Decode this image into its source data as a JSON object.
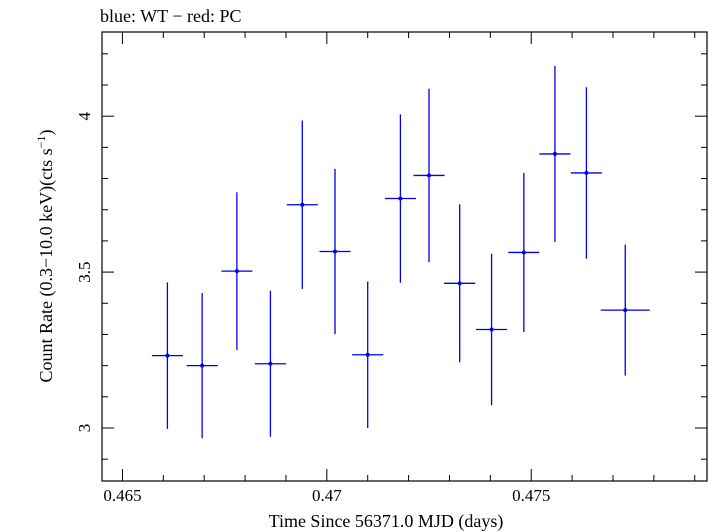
{
  "chart_data": {
    "type": "scatter",
    "title": "blue: WT − red: PC",
    "xlabel": "Time Since 56371.0 MJD (days)",
    "ylabel": "Count Rate (0.3−10.0 keV)(cts s",
    "ylabel_sup": "−1",
    "ylabel_end": ")",
    "xlim": [
      0.4645,
      0.4793
    ],
    "ylim": [
      2.83,
      4.27
    ],
    "x_ticks": [
      0.465,
      0.47,
      0.475
    ],
    "x_tick_labels": [
      "0.465",
      "0.47",
      "0.475"
    ],
    "x_minor_step": 0.001,
    "y_ticks": [
      3,
      3.5,
      4
    ],
    "y_tick_labels": [
      "3",
      "3.5",
      "4"
    ],
    "y_minor_step": 0.1,
    "series_color": "#0000ee",
    "series": [
      {
        "points": [
          {
            "x": 0.4661,
            "xerr": 0.00038,
            "y": 3.232,
            "yerr": 0.235
          },
          {
            "x": 0.46695,
            "xerr": 0.00038,
            "y": 3.2,
            "yerr": 0.233
          },
          {
            "x": 0.4678,
            "xerr": 0.00038,
            "y": 3.503,
            "yerr": 0.253
          },
          {
            "x": 0.46862,
            "xerr": 0.00038,
            "y": 3.206,
            "yerr": 0.234
          },
          {
            "x": 0.4694,
            "xerr": 0.00038,
            "y": 3.716,
            "yerr": 0.27
          },
          {
            "x": 0.4702,
            "xerr": 0.00038,
            "y": 3.566,
            "yerr": 0.265
          },
          {
            "x": 0.471,
            "xerr": 0.00038,
            "y": 3.235,
            "yerr": 0.235
          },
          {
            "x": 0.4718,
            "xerr": 0.00038,
            "y": 3.736,
            "yerr": 0.27
          },
          {
            "x": 0.4725,
            "xerr": 0.00038,
            "y": 3.81,
            "yerr": 0.278
          },
          {
            "x": 0.47325,
            "xerr": 0.00038,
            "y": 3.464,
            "yerr": 0.253
          },
          {
            "x": 0.47403,
            "xerr": 0.00038,
            "y": 3.316,
            "yerr": 0.243
          },
          {
            "x": 0.47482,
            "xerr": 0.00038,
            "y": 3.563,
            "yerr": 0.255
          },
          {
            "x": 0.47558,
            "xerr": 0.00038,
            "y": 3.879,
            "yerr": 0.282
          },
          {
            "x": 0.47635,
            "xerr": 0.00038,
            "y": 3.818,
            "yerr": 0.275
          },
          {
            "x": 0.4773,
            "xerr": 0.0006,
            "y": 3.378,
            "yerr": 0.21
          }
        ]
      }
    ]
  }
}
